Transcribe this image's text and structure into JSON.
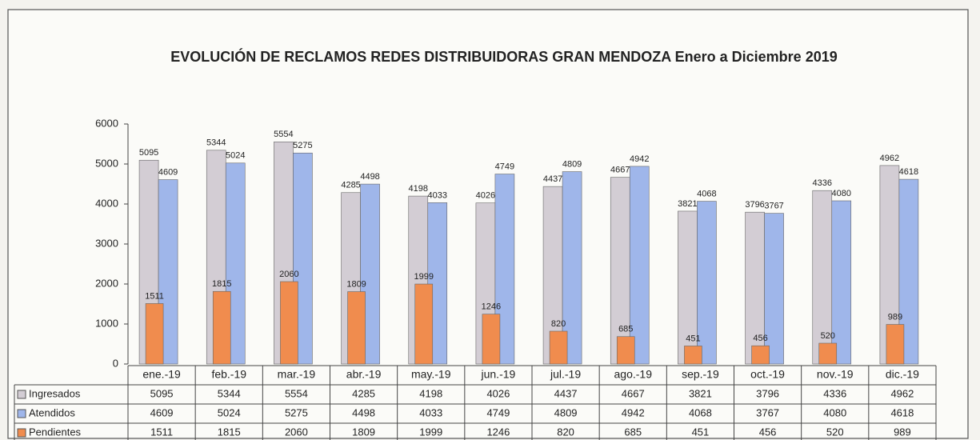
{
  "chart_data": {
    "type": "bar",
    "title": "EVOLUCIÓN DE RECLAMOS REDES DISTRIBUIDORAS GRAN MENDOZA Enero a Diciembre 2019",
    "categories": [
      "ene.-19",
      "feb.-19",
      "mar.-19",
      "abr.-19",
      "may.-19",
      "jun.-19",
      "jul.-19",
      "ago.-19",
      "sep.-19",
      "oct.-19",
      "nov.-19",
      "dic.-19"
    ],
    "series": [
      {
        "name": "Ingresados",
        "color": "#d3cdd4",
        "values": [
          5095,
          5344,
          5554,
          4285,
          4198,
          4026,
          4437,
          4667,
          3821,
          3796,
          4336,
          4962
        ]
      },
      {
        "name": "Atendidos",
        "color": "#9fb6ea",
        "values": [
          4609,
          5024,
          5275,
          4498,
          4033,
          4749,
          4809,
          4942,
          4068,
          3767,
          4080,
          4618
        ]
      },
      {
        "name": "Pendientes",
        "color": "#f08c4e",
        "values": [
          1511,
          1815,
          2060,
          1809,
          1999,
          1246,
          820,
          685,
          451,
          456,
          520,
          989
        ]
      }
    ],
    "ylim": [
      0,
      6000
    ],
    "yticks": [
      0,
      1000,
      2000,
      3000,
      4000,
      5000,
      6000
    ],
    "grid": false,
    "data_table": true
  }
}
